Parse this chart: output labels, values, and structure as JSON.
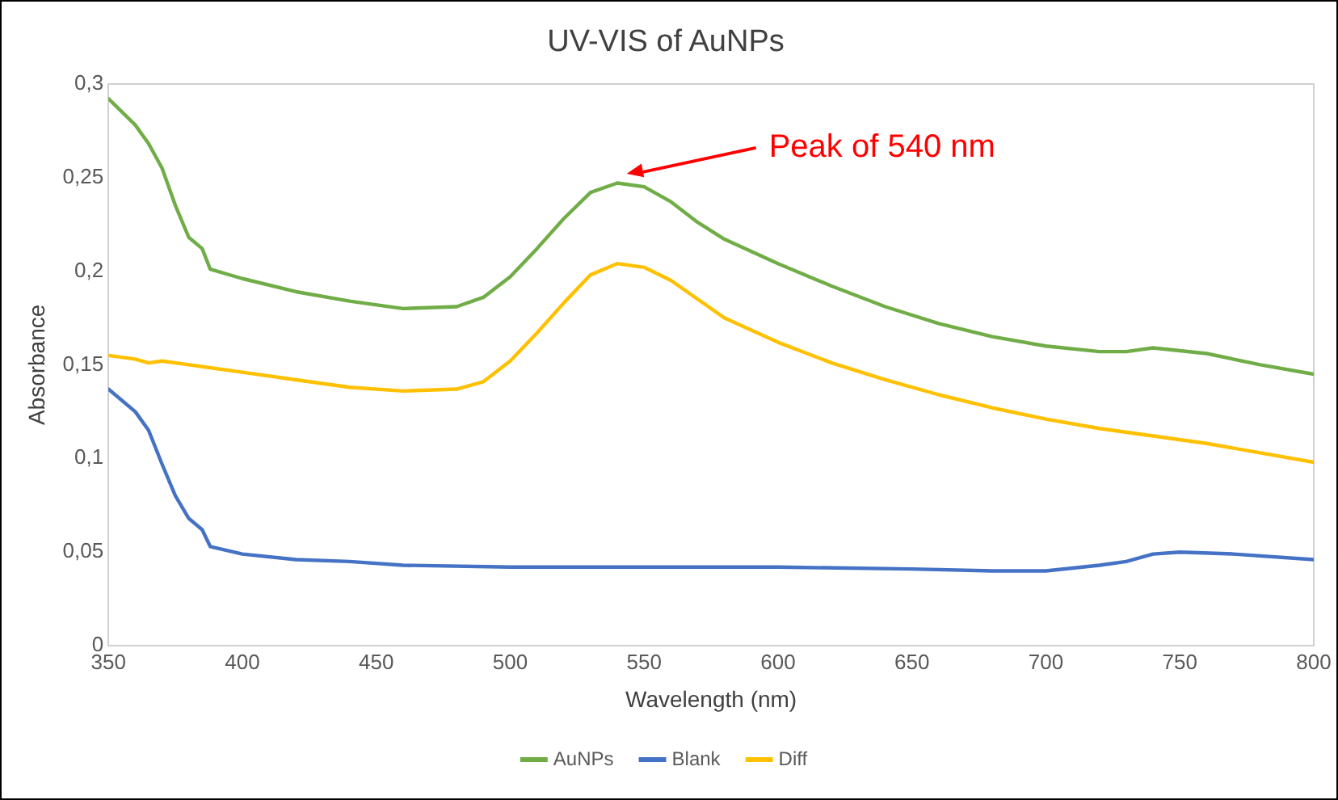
{
  "chart_data": {
    "type": "line",
    "title": "UV-VIS of AuNPs",
    "xlabel": "Wavelength (nm)",
    "ylabel": "Absorbance",
    "xlim": [
      350,
      800
    ],
    "xticks": [
      350,
      400,
      450,
      500,
      550,
      600,
      650,
      700,
      750,
      800
    ],
    "ylim": [
      0,
      0.3
    ],
    "yticks": [
      0,
      {
        "value": 0.05,
        "label": "0,05"
      },
      {
        "value": 0.1,
        "label": "0,1"
      },
      {
        "value": 0.15,
        "label": "0,15"
      },
      {
        "value": 0.2,
        "label": "0,2"
      },
      {
        "value": 0.25,
        "label": "0,25"
      },
      {
        "value": 0.3,
        "label": "0,3"
      }
    ],
    "grid": false,
    "legend": "bottom",
    "marker": "none",
    "line_style": "solid",
    "annotations": [
      "Peak of 540 nm"
    ],
    "series": [
      {
        "name": "AuNPs",
        "color": "#70ad47",
        "x": [
          350,
          360,
          365,
          370,
          375,
          380,
          385,
          388,
          400,
          420,
          440,
          460,
          480,
          490,
          500,
          510,
          520,
          530,
          540,
          550,
          560,
          570,
          580,
          600,
          620,
          640,
          660,
          680,
          700,
          720,
          730,
          740,
          760,
          780,
          800
        ],
        "values": [
          0.292,
          0.278,
          0.268,
          0.255,
          0.235,
          0.218,
          0.212,
          0.201,
          0.196,
          0.189,
          0.184,
          0.18,
          0.181,
          0.186,
          0.197,
          0.212,
          0.228,
          0.242,
          0.247,
          0.245,
          0.237,
          0.226,
          0.217,
          0.204,
          0.192,
          0.181,
          0.172,
          0.165,
          0.16,
          0.157,
          0.157,
          0.159,
          0.156,
          0.15,
          0.145
        ]
      },
      {
        "name": "Blank",
        "color": "#4472c4",
        "x": [
          350,
          360,
          365,
          370,
          375,
          380,
          385,
          388,
          400,
          420,
          440,
          460,
          500,
          550,
          600,
          650,
          680,
          700,
          720,
          730,
          740,
          750,
          770,
          800
        ],
        "values": [
          0.137,
          0.125,
          0.115,
          0.097,
          0.08,
          0.068,
          0.062,
          0.053,
          0.049,
          0.046,
          0.045,
          0.043,
          0.042,
          0.042,
          0.042,
          0.041,
          0.04,
          0.04,
          0.043,
          0.045,
          0.049,
          0.05,
          0.049,
          0.046
        ]
      },
      {
        "name": "Diff",
        "color": "#ffc000",
        "x": [
          350,
          360,
          365,
          370,
          380,
          400,
          420,
          440,
          460,
          480,
          490,
          500,
          510,
          520,
          530,
          540,
          550,
          560,
          570,
          580,
          600,
          620,
          640,
          660,
          680,
          700,
          720,
          740,
          760,
          780,
          800
        ],
        "values": [
          0.155,
          0.153,
          0.151,
          0.152,
          0.15,
          0.146,
          0.142,
          0.138,
          0.136,
          0.137,
          0.141,
          0.152,
          0.167,
          0.183,
          0.198,
          0.204,
          0.202,
          0.195,
          0.185,
          0.175,
          0.162,
          0.151,
          0.142,
          0.134,
          0.127,
          0.121,
          0.116,
          0.112,
          0.108,
          0.103,
          0.098
        ]
      }
    ]
  }
}
